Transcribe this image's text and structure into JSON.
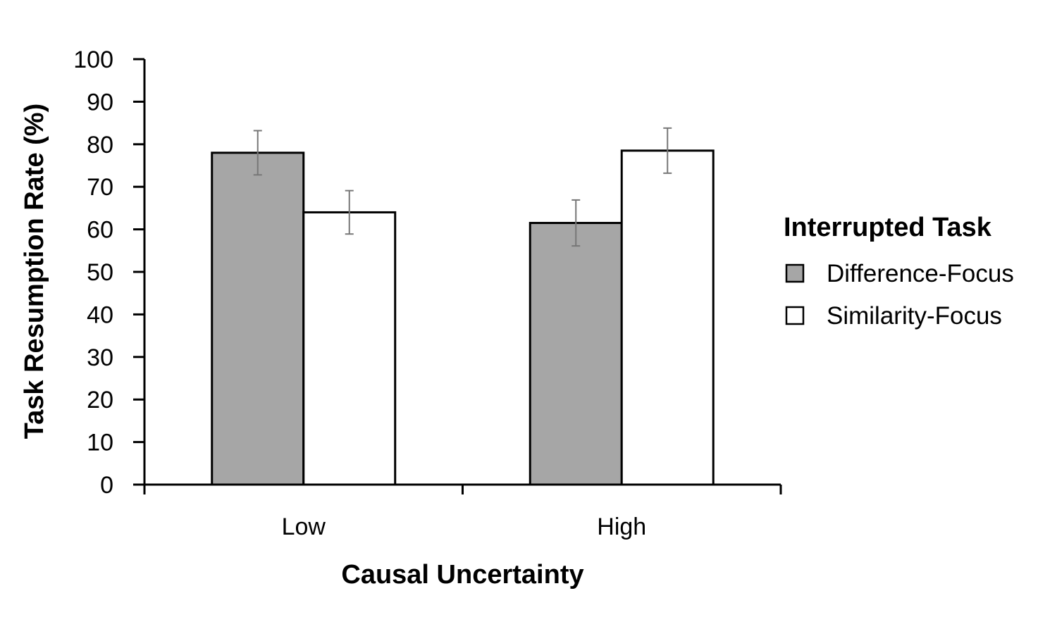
{
  "chart_data": {
    "type": "bar",
    "title": "",
    "xlabel": "Causal Uncertainty",
    "ylabel": "Task Resumption Rate (%)",
    "categories": [
      "Low",
      "High"
    ],
    "ylim": [
      0,
      100
    ],
    "yticks": [
      0,
      10,
      20,
      30,
      40,
      50,
      60,
      70,
      80,
      90,
      100
    ],
    "grid": false,
    "legend": {
      "title": "Interrupted Task",
      "placement": "right"
    },
    "series": [
      {
        "name": "Difference-Focus",
        "color": "#a6a6a6",
        "values": [
          78,
          61.5
        ],
        "error": [
          5.2,
          5.4
        ]
      },
      {
        "name": "Similarity-Focus",
        "color": "#ffffff",
        "values": [
          64,
          78.5
        ],
        "error": [
          5.1,
          5.3
        ]
      }
    ]
  }
}
